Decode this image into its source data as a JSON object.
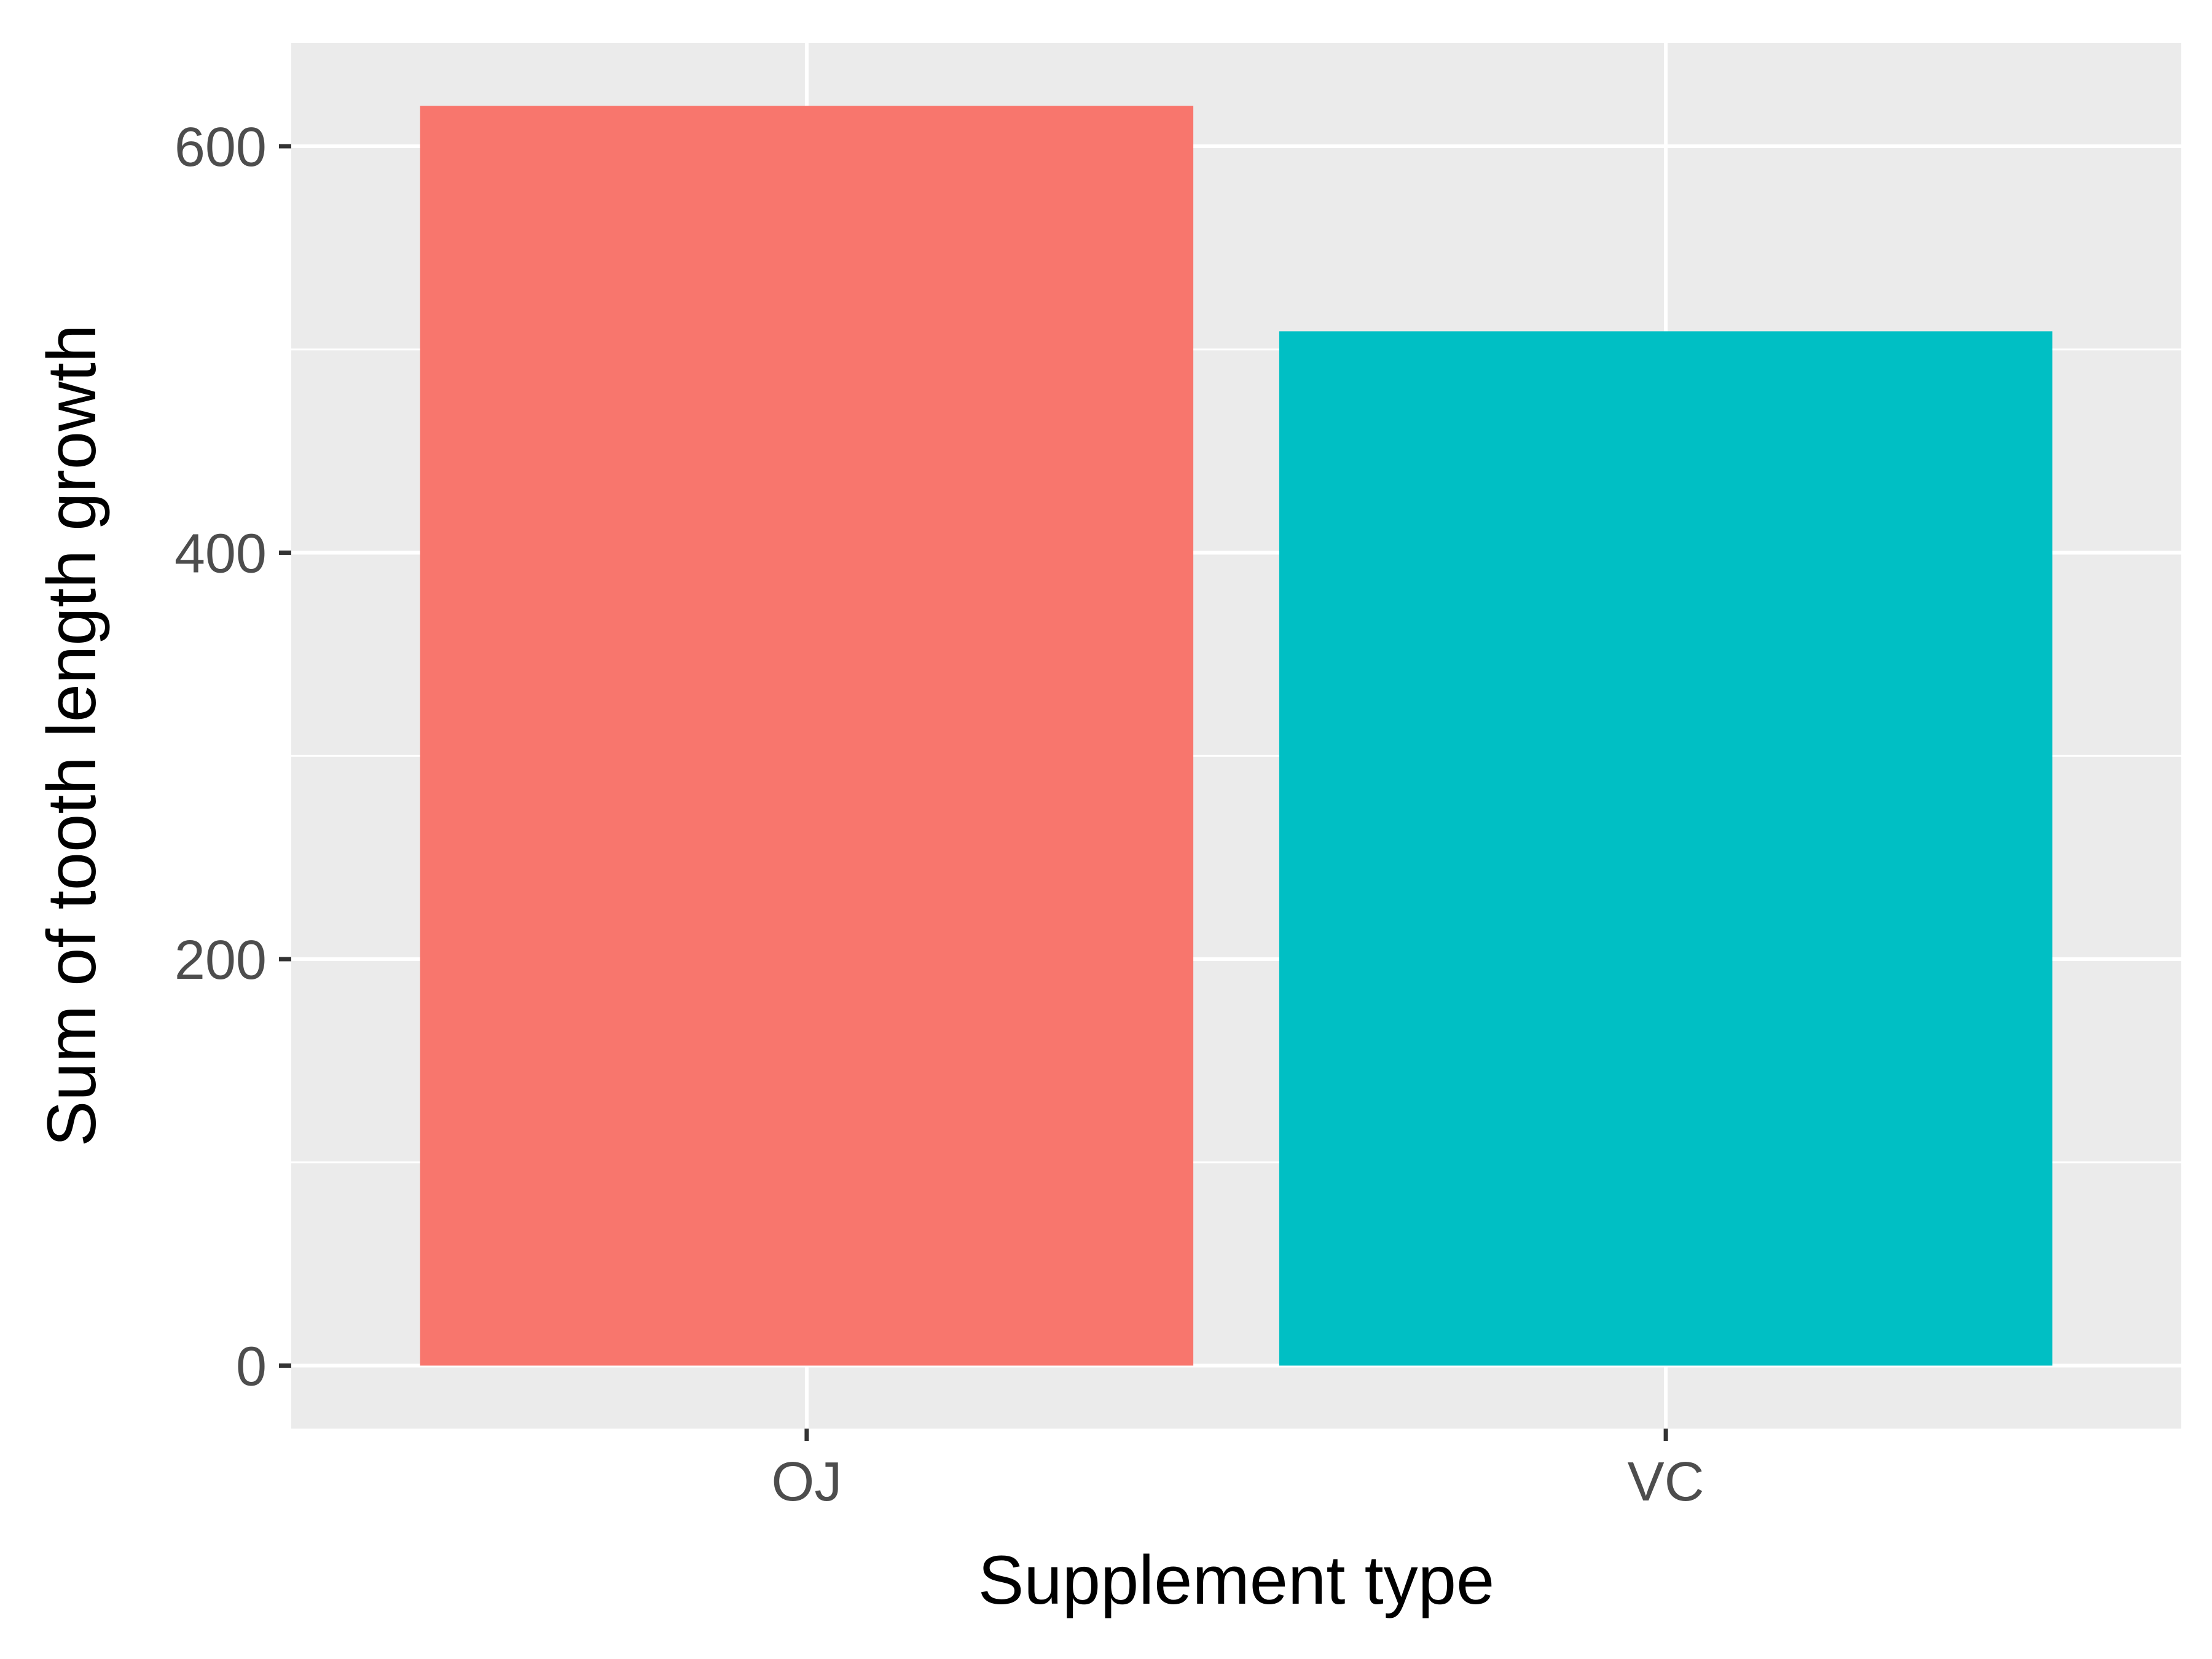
{
  "chart_data": {
    "type": "bar",
    "categories": [
      "OJ",
      "VC"
    ],
    "values": [
      619.9,
      508.9
    ],
    "colors": [
      "#F8766D",
      "#00BFC4"
    ],
    "title": "",
    "xlabel": "Supplement type",
    "ylabel": "Sum of tooth length growth",
    "ylim": [
      -30.99,
      650.78
    ],
    "yticks": [
      0,
      200,
      400,
      600
    ],
    "grid": true,
    "legend": "none",
    "panel_background": "#EBEBEB",
    "grid_color": "#FFFFFF"
  }
}
